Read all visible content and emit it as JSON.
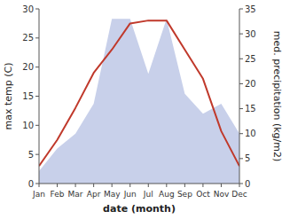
{
  "chart_data": {
    "type": "line",
    "xlabel": "date (month)",
    "ylabel": "max temp (C)",
    "y2label": "med. precipitation (kg/m2)",
    "categories": [
      "Jan",
      "Feb",
      "Mar",
      "Apr",
      "May",
      "Jun",
      "Jul",
      "Aug",
      "Sep",
      "Oct",
      "Nov",
      "Dec"
    ],
    "series": [
      {
        "type": "area",
        "axis": "y2",
        "color": "#c8d0ea",
        "values": [
          2.5,
          7,
          10,
          16,
          33,
          33,
          22,
          33,
          18,
          14,
          16,
          10
        ]
      },
      {
        "type": "line",
        "color": "#c0392b",
        "values": [
          3,
          7.5,
          13,
          19,
          23,
          27.5,
          28,
          28,
          23,
          18,
          9,
          3
        ]
      }
    ],
    "ylim": [
      0,
      30
    ],
    "yticks": [
      0,
      5,
      10,
      15,
      20,
      25,
      30
    ],
    "y2lim": [
      0,
      35
    ],
    "y2ticks": [
      0,
      5,
      10,
      15,
      20,
      25,
      30,
      35
    ],
    "grid": false
  }
}
